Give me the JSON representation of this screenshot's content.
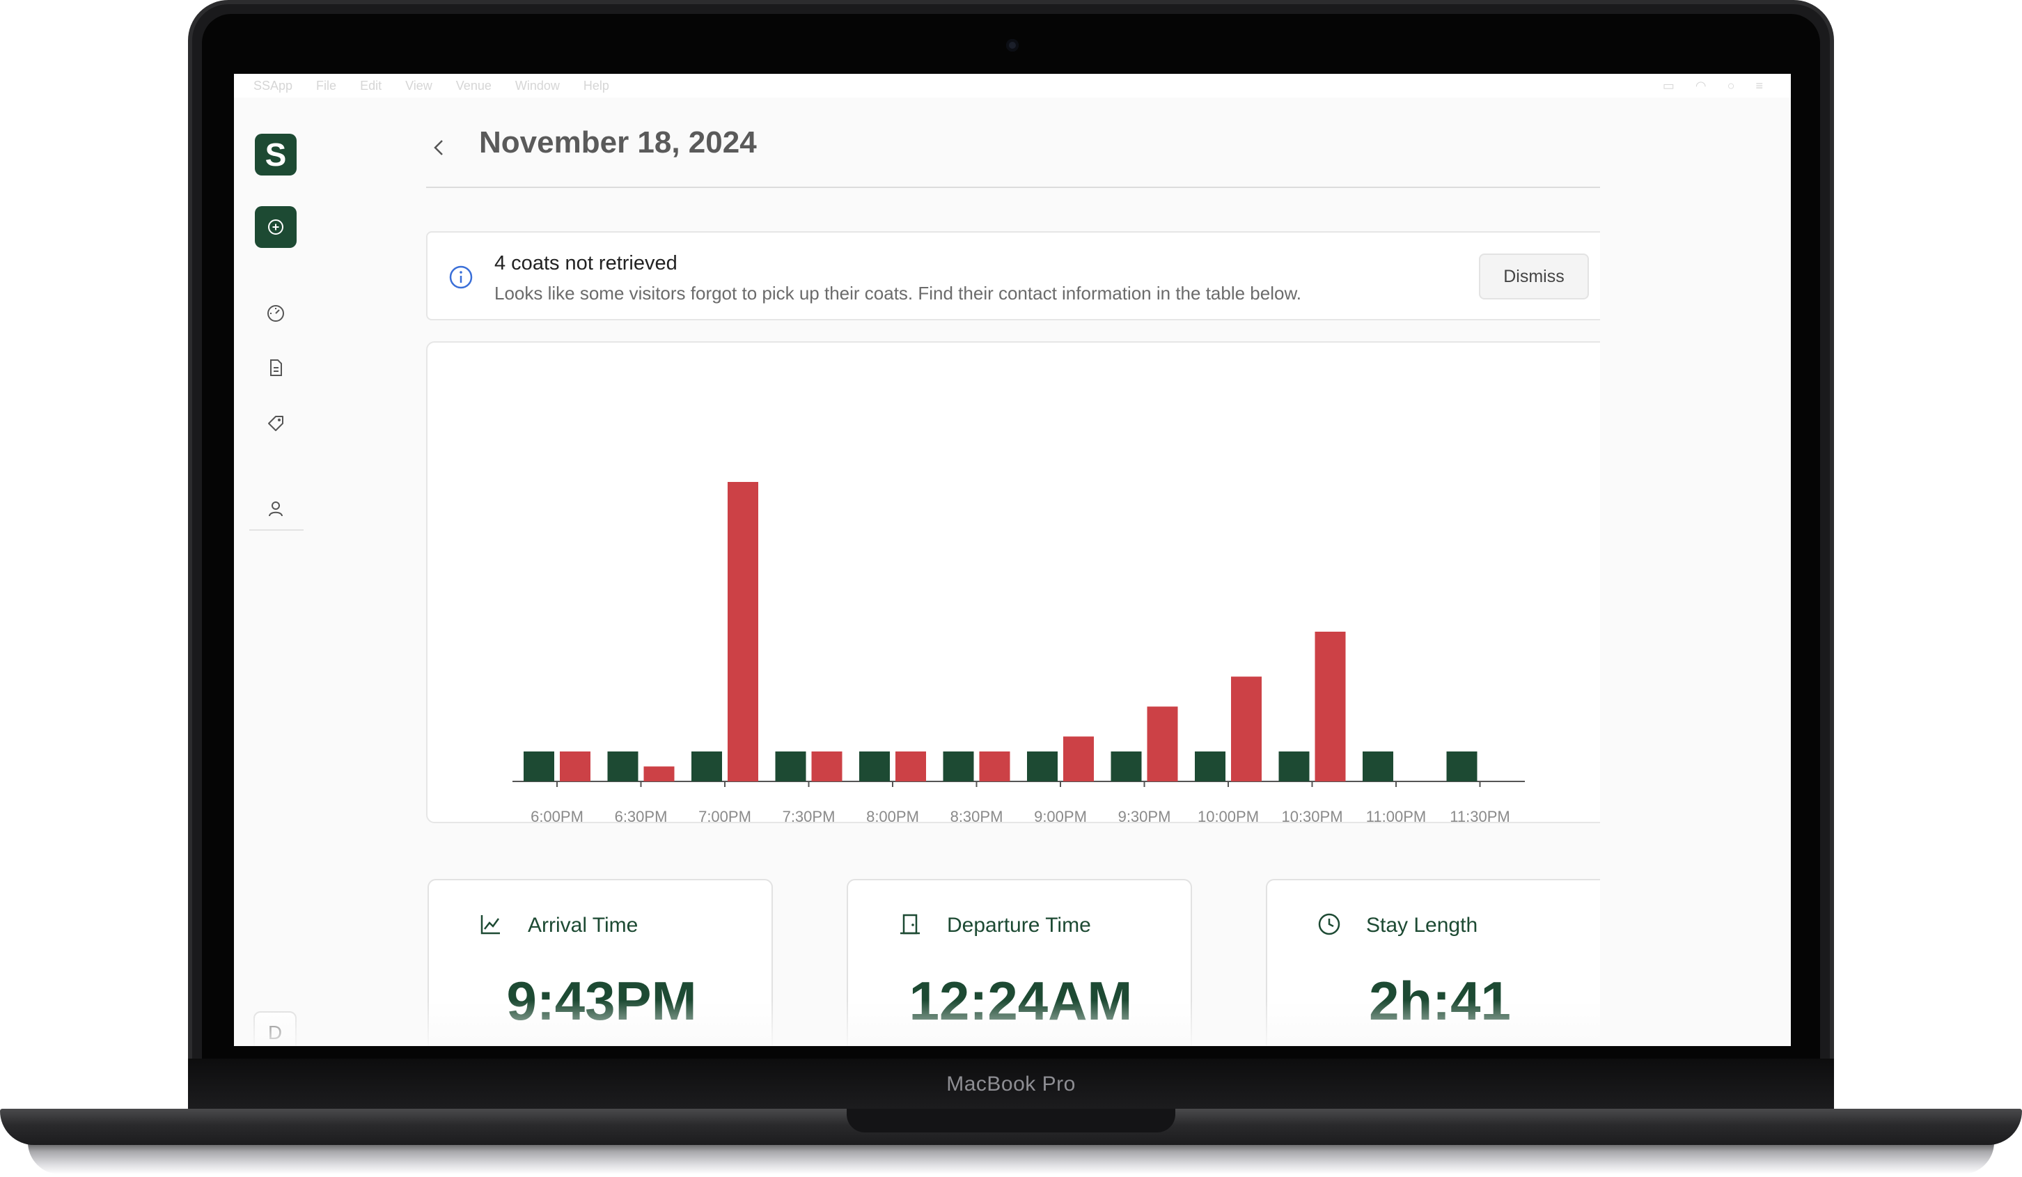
{
  "device": {
    "label": "MacBook Pro"
  },
  "menubar": {
    "items": [
      "SSApp",
      "File",
      "Edit",
      "View",
      "Venue",
      "Window",
      "Help"
    ]
  },
  "sidebar": {
    "logo_letter": "S",
    "user_initial": "D",
    "icons": [
      "plus-circle-icon",
      "gauge-icon",
      "document-icon",
      "tag-icon",
      "user-icon"
    ]
  },
  "header": {
    "title": "November 18, 2024"
  },
  "alert": {
    "title": "4 coats not retrieved",
    "body": "Looks like some visitors forgot to pick up their coats. Find their contact information in the table below.",
    "dismiss_label": "Dismiss"
  },
  "colors": {
    "brand": "#1d4a33",
    "departure": "#cc4146",
    "text_muted": "#6b6b6b"
  },
  "chart_data": {
    "type": "bar",
    "categories": [
      "6:00PM",
      "6:30PM",
      "7:00PM",
      "7:30PM",
      "8:00PM",
      "8:30PM",
      "9:00PM",
      "9:30PM",
      "10:00PM",
      "10:30PM",
      "11:00PM",
      "11:30PM"
    ],
    "series": [
      {
        "color": "#1d4a33",
        "values": [
          1,
          1,
          1,
          1,
          1,
          1,
          1,
          1,
          1,
          1,
          1,
          1
        ]
      },
      {
        "color": "#cc4146",
        "values": [
          1,
          0.5,
          10,
          1,
          1,
          1,
          1.5,
          2.5,
          3.5,
          5,
          0,
          0
        ]
      }
    ],
    "ylim": [
      0,
      10
    ]
  },
  "stats": [
    {
      "label": "Arrival Time",
      "value": "9:43PM",
      "icon": "line-chart-icon"
    },
    {
      "label": "Departure Time",
      "value": "12:24AM",
      "icon": "door-icon"
    },
    {
      "label": "Stay Length",
      "value": "2h:41",
      "icon": "clock-icon"
    }
  ]
}
